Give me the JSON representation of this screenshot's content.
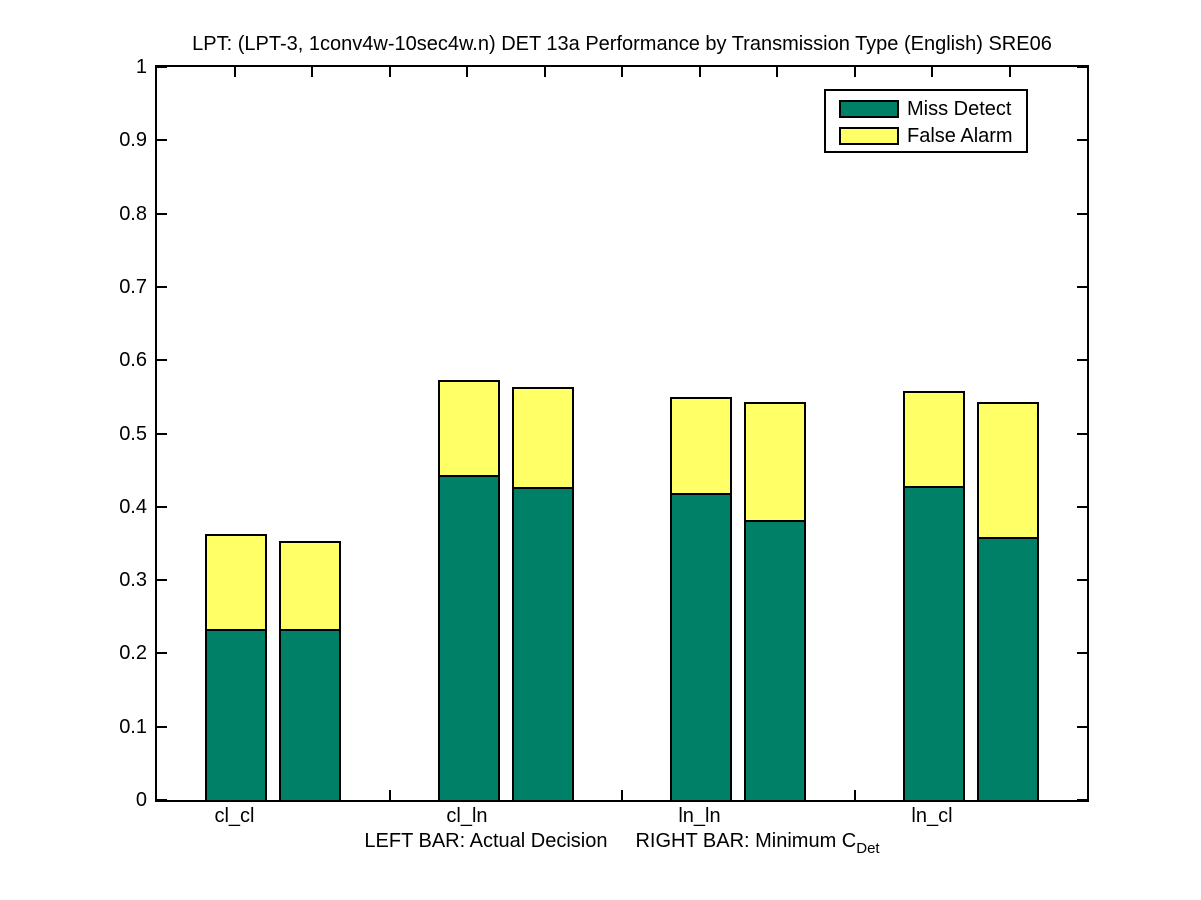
{
  "chart_data": {
    "type": "bar",
    "stacked": true,
    "title": "LPT: (LPT-3, 1conv4w-10sec4w.n) DET 13a Performance by Transmission Type (English) SRE06",
    "categories": [
      "cl_cl",
      "cl_ln",
      "ln_ln",
      "ln_cl"
    ],
    "series": [
      {
        "name": "Miss Detect",
        "color": "#008066"
      },
      {
        "name": "False Alarm",
        "color": "#ffff66"
      }
    ],
    "bar_semantics": {
      "left_bar": "Actual Decision",
      "right_bar": "Minimum C_Det"
    },
    "groups": [
      {
        "category": "cl_cl",
        "left": {
          "miss_detect": 0.233,
          "false_alarm": 0.13
        },
        "right": {
          "miss_detect": 0.233,
          "false_alarm": 0.12
        }
      },
      {
        "category": "cl_ln",
        "left": {
          "miss_detect": 0.444,
          "false_alarm": 0.129
        },
        "right": {
          "miss_detect": 0.427,
          "false_alarm": 0.136
        }
      },
      {
        "category": "ln_ln",
        "left": {
          "miss_detect": 0.419,
          "false_alarm": 0.131
        },
        "right": {
          "miss_detect": 0.382,
          "false_alarm": 0.161
        }
      },
      {
        "category": "ln_cl",
        "left": {
          "miss_detect": 0.428,
          "false_alarm": 0.13
        },
        "right": {
          "miss_detect": 0.359,
          "false_alarm": 0.184
        }
      }
    ],
    "ylim": [
      0,
      1
    ],
    "yticks": [
      0,
      0.1,
      0.2,
      0.3,
      0.4,
      0.5,
      0.6,
      0.7,
      0.8,
      0.9,
      1
    ],
    "grid": false,
    "legend_position": "top-right"
  },
  "footnote": {
    "left_text": "LEFT BAR: Actual Decision",
    "right_text": "RIGHT BAR: Minimum C",
    "right_subscript": "Det"
  }
}
